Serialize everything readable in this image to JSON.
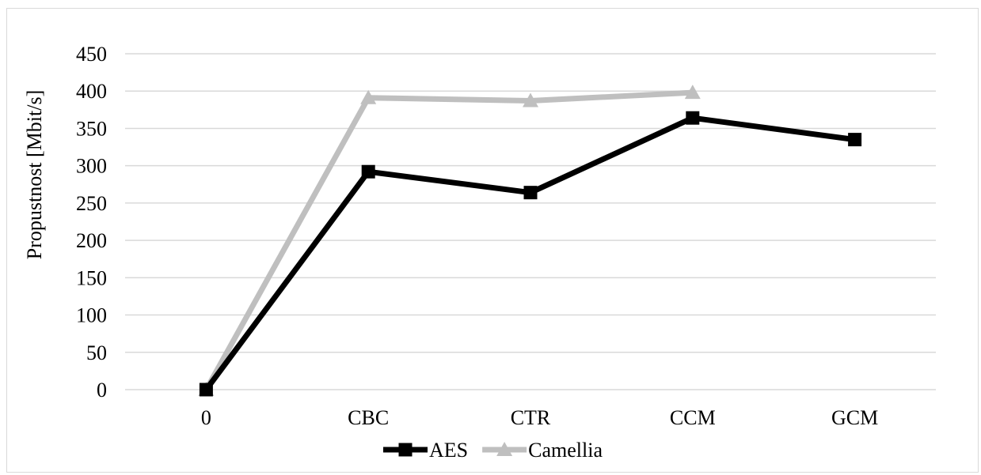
{
  "chart_data": {
    "type": "line",
    "categories": [
      "0",
      "CBC",
      "CTR",
      "CCM",
      "GCM"
    ],
    "ylabel": "Propustnost [Mbit/s]",
    "ylim": [
      0,
      450
    ],
    "yticks": [
      0,
      50,
      100,
      150,
      200,
      250,
      300,
      350,
      400,
      450
    ],
    "grid": true,
    "legend_position": "bottom",
    "series": [
      {
        "name": "AES",
        "values": [
          0,
          292,
          264,
          364,
          335
        ],
        "color": "#000000",
        "marker": "square"
      },
      {
        "name": "Camellia",
        "values": [
          0,
          391,
          387,
          398,
          null
        ],
        "color": "#bfbfbf",
        "marker": "triangle"
      }
    ]
  }
}
